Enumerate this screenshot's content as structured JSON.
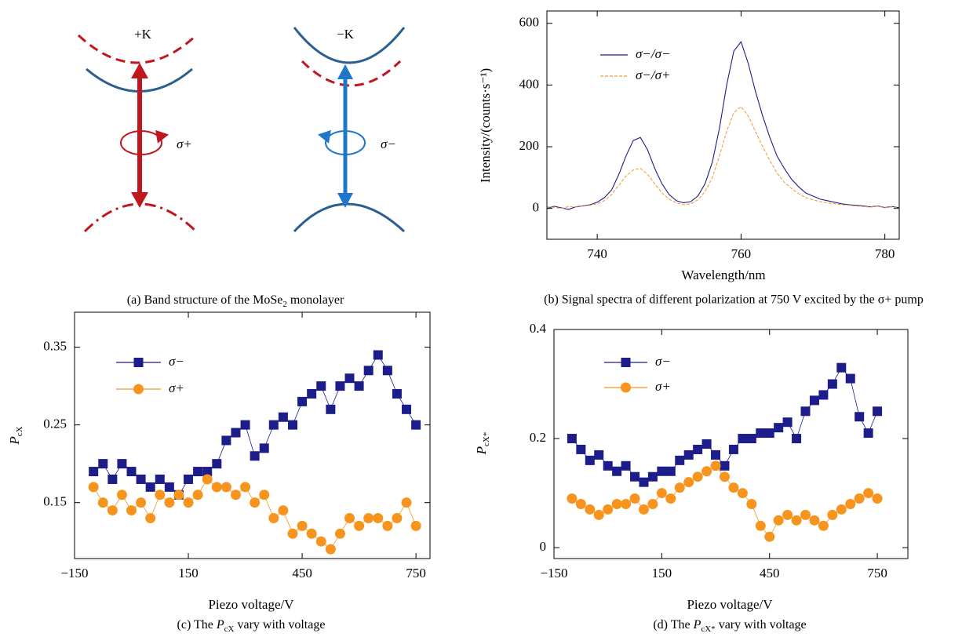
{
  "band_diagram": {
    "valleys": [
      {
        "label": "+K",
        "polarization": "σ+"
      },
      {
        "label": "−K",
        "polarization": "σ−"
      }
    ],
    "caption": [
      "(a) Band structure of the MoSe",
      "2",
      " monolayer"
    ]
  },
  "chart_data": [
    {
      "type": "line",
      "caption": "(b) Signal spectra of different polarization at 750 V excited by the σ+ pump",
      "xlabel": "Wavelength/nm",
      "ylabel": "Intensity/(counts·s⁻¹)",
      "x": [
        733,
        734,
        735,
        736,
        737,
        738,
        739,
        740,
        741,
        742,
        743,
        744,
        745,
        746,
        747,
        748,
        749,
        750,
        751,
        752,
        753,
        754,
        755,
        756,
        757,
        758,
        759,
        760,
        761,
        762,
        763,
        764,
        765,
        766,
        767,
        768,
        769,
        770,
        771,
        772,
        773,
        774,
        775,
        776,
        777,
        778,
        779,
        780,
        781,
        782
      ],
      "series": [
        {
          "name": "σ−/σ−",
          "color": "#1c1c8a",
          "line_style": "solid",
          "values": [
            0,
            7,
            2,
            -3,
            5,
            8,
            12,
            20,
            35,
            60,
            110,
            170,
            220,
            230,
            190,
            130,
            80,
            45,
            25,
            18,
            22,
            40,
            80,
            150,
            260,
            400,
            510,
            540,
            470,
            380,
            300,
            230,
            170,
            130,
            95,
            70,
            50,
            40,
            30,
            25,
            20,
            15,
            12,
            10,
            8,
            5,
            8,
            3,
            6,
            2
          ]
        },
        {
          "name": "σ−/σ+",
          "color": "#f0a040",
          "line_style": "dashed",
          "values": [
            5,
            3,
            0,
            6,
            4,
            7,
            10,
            15,
            25,
            45,
            75,
            105,
            125,
            130,
            110,
            80,
            50,
            30,
            18,
            12,
            15,
            28,
            55,
            100,
            170,
            250,
            310,
            330,
            300,
            250,
            200,
            155,
            115,
            85,
            65,
            48,
            35,
            28,
            22,
            18,
            15,
            12,
            10,
            8,
            6,
            4,
            7,
            2,
            5,
            0
          ]
        }
      ],
      "xlim": [
        733,
        782
      ],
      "xticks": [
        740,
        760,
        780
      ],
      "ylim": [
        -100,
        640
      ],
      "yticks": [
        0,
        200,
        400,
        600
      ]
    },
    {
      "type": "line",
      "caption": [
        "(c) The ",
        "P",
        "cX",
        " vary with voltage"
      ],
      "xlabel": "Piezo voltage/V",
      "ylabel": [
        "P",
        "cX"
      ],
      "x": [
        -100,
        -75,
        -50,
        -25,
        0,
        25,
        50,
        75,
        100,
        125,
        150,
        175,
        200,
        225,
        250,
        275,
        300,
        325,
        350,
        375,
        400,
        425,
        450,
        475,
        500,
        525,
        550,
        575,
        600,
        625,
        650,
        675,
        700,
        725,
        750
      ],
      "series": [
        {
          "name": "σ−",
          "color": "#1c1c8a",
          "marker": "square",
          "values": [
            0.19,
            0.2,
            0.18,
            0.2,
            0.19,
            0.18,
            0.17,
            0.18,
            0.17,
            0.16,
            0.18,
            0.19,
            0.19,
            0.2,
            0.23,
            0.24,
            0.25,
            0.21,
            0.22,
            0.25,
            0.26,
            0.25,
            0.28,
            0.29,
            0.3,
            0.27,
            0.3,
            0.31,
            0.3,
            0.32,
            0.34,
            0.32,
            0.29,
            0.27,
            0.25
          ]
        },
        {
          "name": "σ+",
          "color": "#f7941d",
          "marker": "circle",
          "values": [
            0.17,
            0.15,
            0.14,
            0.16,
            0.14,
            0.15,
            0.13,
            0.16,
            0.15,
            0.16,
            0.15,
            0.16,
            0.18,
            0.17,
            0.17,
            0.16,
            0.17,
            0.15,
            0.16,
            0.13,
            0.14,
            0.11,
            0.12,
            0.11,
            0.1,
            0.09,
            0.11,
            0.13,
            0.12,
            0.13,
            0.13,
            0.12,
            0.13,
            0.15,
            0.12
          ]
        }
      ],
      "xlim": [
        -150,
        787
      ],
      "xticks": [
        {
          "value": -150,
          "label": "−150"
        },
        150,
        450,
        750
      ],
      "ylim": [
        0.078,
        0.395
      ],
      "yticks": [
        0.15,
        0.25,
        0.35
      ]
    },
    {
      "type": "line",
      "caption": [
        "(d) The ",
        "P",
        "cX*",
        " vary with voltage"
      ],
      "xlabel": "Piezo voltage/V",
      "ylabel": [
        "P",
        "cX*"
      ],
      "x": [
        -100,
        -75,
        -50,
        -25,
        0,
        25,
        50,
        75,
        100,
        125,
        150,
        175,
        200,
        225,
        250,
        275,
        300,
        325,
        350,
        375,
        400,
        425,
        450,
        475,
        500,
        525,
        550,
        575,
        600,
        625,
        650,
        675,
        700,
        725,
        750
      ],
      "series": [
        {
          "name": "σ−",
          "color": "#1c1c8a",
          "marker": "square",
          "values": [
            0.2,
            0.18,
            0.16,
            0.17,
            0.15,
            0.14,
            0.15,
            0.13,
            0.12,
            0.13,
            0.14,
            0.14,
            0.16,
            0.17,
            0.18,
            0.19,
            0.17,
            0.15,
            0.18,
            0.2,
            0.2,
            0.21,
            0.21,
            0.22,
            0.23,
            0.2,
            0.25,
            0.27,
            0.28,
            0.3,
            0.33,
            0.31,
            0.24,
            0.21,
            0.25
          ]
        },
        {
          "name": "σ+",
          "color": "#f7941d",
          "marker": "circle",
          "values": [
            0.09,
            0.08,
            0.07,
            0.06,
            0.07,
            0.08,
            0.08,
            0.09,
            0.07,
            0.08,
            0.1,
            0.09,
            0.11,
            0.12,
            0.13,
            0.14,
            0.15,
            0.13,
            0.11,
            0.1,
            0.08,
            0.04,
            0.02,
            0.05,
            0.06,
            0.05,
            0.06,
            0.05,
            0.04,
            0.06,
            0.07,
            0.08,
            0.09,
            0.1,
            0.09
          ]
        }
      ],
      "xlim": [
        -150,
        835
      ],
      "xticks": [
        {
          "value": -150,
          "label": "−150"
        },
        150,
        450,
        750
      ],
      "ylim": [
        -0.02,
        0.4
      ],
      "yticks": [
        0,
        0.2,
        0.4
      ]
    }
  ]
}
